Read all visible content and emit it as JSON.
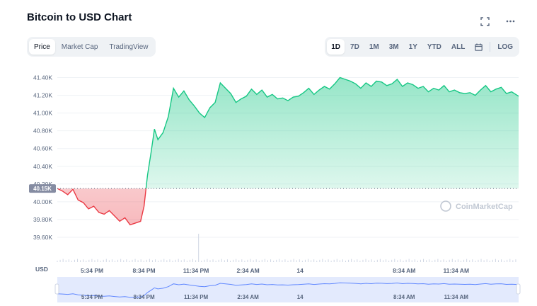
{
  "title": "Bitcoin to USD Chart",
  "header_icons": [
    {
      "name": "fullscreen-icon",
      "glyph": "⛶"
    },
    {
      "name": "more-options-icon",
      "glyph": "⋯"
    }
  ],
  "left_tabs": [
    {
      "label": "Price",
      "active": true
    },
    {
      "label": "Market Cap",
      "active": false
    },
    {
      "label": "TradingView",
      "active": false
    }
  ],
  "range_tabs": [
    {
      "label": "1D",
      "active": true
    },
    {
      "label": "7D",
      "active": false
    },
    {
      "label": "1M",
      "active": false
    },
    {
      "label": "3M",
      "active": false
    },
    {
      "label": "1Y",
      "active": false
    },
    {
      "label": "YTD",
      "active": false
    },
    {
      "label": "ALL",
      "active": false
    }
  ],
  "calendar_icon": "calendar-icon",
  "log_label": "LOG",
  "currency_label": "USD",
  "watermark": "CoinMarketCap",
  "reference_price_label": "40.15K",
  "colors": {
    "up": "#16c784",
    "down": "#ea3943",
    "navigator_line": "#6188ff",
    "navigator_fill": "#e3eafd",
    "grid": "#eff2f5",
    "tag_bg": "#858ca2"
  },
  "chart_data": {
    "type": "line",
    "title": "Bitcoin to USD Chart",
    "ylabel": "USD",
    "ylim": [
      39400,
      41500
    ],
    "reference_value": 40150,
    "y_ticks": [
      "39.60K",
      "39.80K",
      "40.00K",
      "40.20K",
      "40.40K",
      "40.60K",
      "40.80K",
      "41.00K",
      "41.20K",
      "41.40K"
    ],
    "y_tick_values": [
      39600,
      39800,
      40000,
      40200,
      40400,
      40600,
      40800,
      41000,
      41200,
      41400
    ],
    "x_ticks": [
      "5:34 PM",
      "8:34 PM",
      "11:34 PM",
      "2:34 AM",
      "14",
      "8:34 AM",
      "11:34 AM"
    ],
    "x_tick_hours": [
      2,
      5,
      8,
      11,
      14,
      20,
      23
    ],
    "x_hours_range": [
      0,
      26.6
    ],
    "series": [
      {
        "hours": [
          0,
          0.3,
          0.6,
          0.9,
          1.2,
          1.5,
          1.8,
          2.1,
          2.4,
          2.7,
          3.0,
          3.3,
          3.6,
          3.9,
          4.2,
          4.5,
          4.8,
          5.0,
          5.2,
          5.4,
          5.6,
          5.8,
          6.1,
          6.4,
          6.7,
          7.0,
          7.3,
          7.6,
          7.9,
          8.2,
          8.5,
          8.8,
          9.1,
          9.4,
          9.7,
          10.0,
          10.3,
          10.6,
          10.9,
          11.2,
          11.5,
          11.8,
          12.1,
          12.4,
          12.7,
          13.0,
          13.3,
          13.6,
          13.9,
          14.2,
          14.5,
          14.8,
          15.1,
          15.4,
          15.7,
          16.0,
          16.3,
          16.6,
          16.9,
          17.2,
          17.5,
          17.8,
          18.1,
          18.4,
          18.7,
          19.0,
          19.3,
          19.6,
          19.9,
          20.2,
          20.5,
          20.8,
          21.1,
          21.4,
          21.7,
          22.0,
          22.3,
          22.6,
          22.9,
          23.2,
          23.5,
          23.8,
          24.1,
          24.4,
          24.7,
          25.0,
          25.3,
          25.6,
          25.9,
          26.2,
          26.6
        ],
        "values": [
          40150,
          40120,
          40080,
          40140,
          40020,
          39990,
          39920,
          39950,
          39880,
          39860,
          39900,
          39840,
          39780,
          39820,
          39740,
          39760,
          39780,
          39950,
          40300,
          40550,
          40820,
          40700,
          40780,
          40960,
          41280,
          41180,
          41250,
          41150,
          41080,
          41000,
          40950,
          41060,
          41120,
          41340,
          41280,
          41220,
          41120,
          41160,
          41190,
          41270,
          41210,
          41260,
          41180,
          41210,
          41160,
          41170,
          41140,
          41180,
          41190,
          41230,
          41280,
          41210,
          41260,
          41300,
          41270,
          41330,
          41400,
          41380,
          41360,
          41330,
          41280,
          41340,
          41300,
          41360,
          41350,
          41310,
          41330,
          41380,
          41300,
          41340,
          41320,
          41280,
          41300,
          41240,
          41280,
          41260,
          41310,
          41240,
          41260,
          41230,
          41220,
          41230,
          41200,
          41260,
          41310,
          41240,
          41270,
          41290,
          41220,
          41240,
          41190
        ]
      }
    ]
  },
  "navigator_ticks": [
    "5:34 PM",
    "8:34 PM",
    "11:34 PM",
    "2:34 AM",
    "14",
    "8:34 AM",
    "11:34 AM"
  ]
}
